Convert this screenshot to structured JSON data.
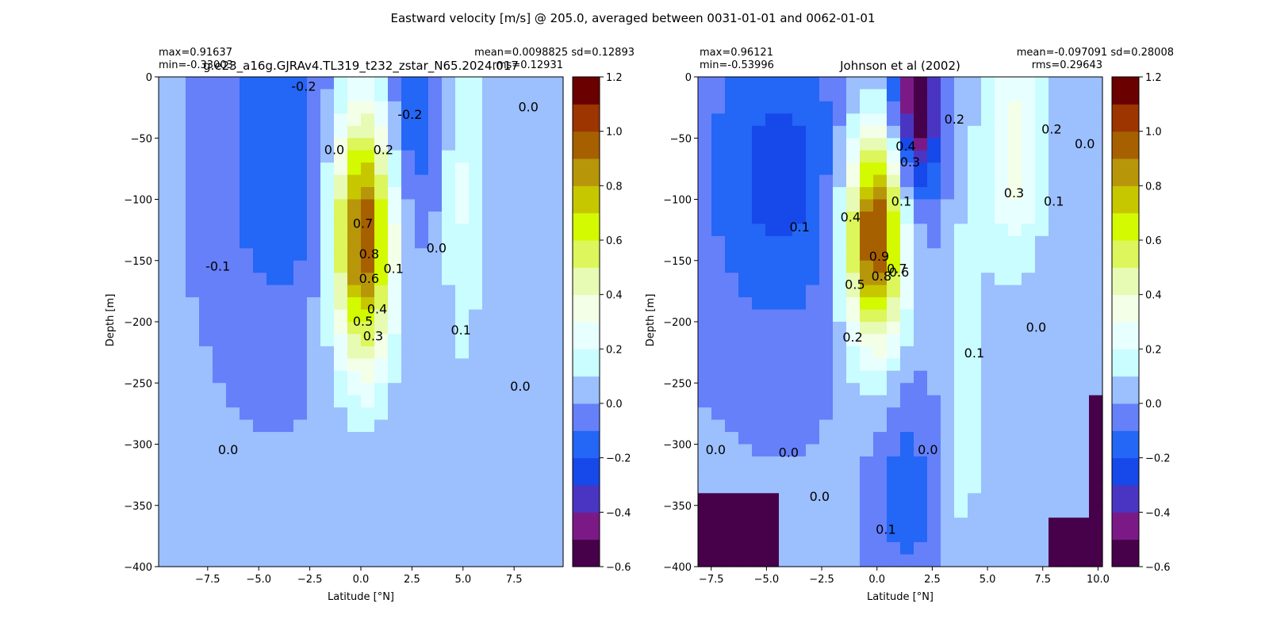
{
  "figure": {
    "title": "Eastward velocity [m/s] @ 205.0, averaged between 0031-01-01 and 0062-01-01"
  },
  "colors": {
    "levels": [
      -0.6,
      -0.5,
      -0.4,
      -0.3,
      -0.2,
      -0.1,
      0.0,
      0.1,
      0.2,
      0.3,
      0.4,
      0.5,
      0.6,
      0.7,
      0.8,
      0.9,
      1.0,
      1.1,
      1.2
    ],
    "fills": [
      "#47004a",
      "#7b1a86",
      "#4a35c2",
      "#1748ea",
      "#2466f5",
      "#6680fa",
      "#9cbffe",
      "#c9fdff",
      "#e8ffff",
      "#f4ffe8",
      "#e7fbb4",
      "#dcf65b",
      "#d3fa00",
      "#c7c700",
      "#b8960a",
      "#a76000",
      "#9c3500",
      "#6a0000"
    ]
  },
  "chart_data": [
    {
      "type": "heatmap",
      "title": "g.e23_a16g.GJRAv4.TL319_t232_zstar_N65.2024.017",
      "stats_left": [
        "max=0.91637",
        "min=-0.33003"
      ],
      "stats_right": [
        "mean=0.0098825 sd=0.12893",
        "rms=0.12931"
      ],
      "xlabel": "Latitude [°N]",
      "ylabel": "Depth [m]",
      "xlim": [
        -9.9,
        9.9
      ],
      "ylim": [
        -400,
        0
      ],
      "xticks": [
        -7.5,
        -5.0,
        -2.5,
        0.0,
        2.5,
        5.0,
        7.5
      ],
      "xticklabels": [
        "−7.5",
        "−5.0",
        "−2.5",
        "0.0",
        "2.5",
        "5.0",
        "7.5"
      ],
      "yticks": [
        0,
        -50,
        -100,
        -150,
        -200,
        -250,
        -300,
        -350,
        -400
      ],
      "yticklabels": [
        "0",
        "−50",
        "−100",
        "−150",
        "−200",
        "−250",
        "−300",
        "−350",
        "−400"
      ],
      "cbar_ticks": [
        -0.6,
        -0.4,
        -0.2,
        0.0,
        0.2,
        0.4,
        0.6,
        0.8,
        1.0,
        1.2
      ],
      "cbar_ticklabels": [
        "−0.6",
        "−0.4",
        "−0.2",
        "0.0",
        "0.2",
        "0.4",
        "0.6",
        "0.8",
        "1.0",
        "1.2"
      ],
      "features": [
        {
          "kind": "jet",
          "lat": 0.1,
          "depth": -130,
          "amp": 1.0,
          "slat": 1.05,
          "sdepth": 75
        },
        {
          "kind": "jet",
          "lat": 5.0,
          "depth": -90,
          "amp": 0.2,
          "slat": 0.7,
          "sdepth": 110
        },
        {
          "kind": "jet",
          "lat": -4.0,
          "depth": -70,
          "amp": -0.2,
          "slat": 2.0,
          "sdepth": 90
        },
        {
          "kind": "jet",
          "lat": 2.5,
          "depth": -40,
          "amp": -0.2,
          "slat": 0.9,
          "sdepth": 55
        }
      ],
      "contour_labels": [
        {
          "text": "-0.2",
          "lat": -2.8,
          "depth": -8
        },
        {
          "text": "-0.2",
          "lat": 2.4,
          "depth": -31
        },
        {
          "text": "0.0",
          "lat": 8.2,
          "depth": -25
        },
        {
          "text": "0.0",
          "lat": -1.3,
          "depth": -60
        },
        {
          "text": "0.2",
          "lat": 1.1,
          "depth": -60
        },
        {
          "text": "0.7",
          "lat": 0.1,
          "depth": -120
        },
        {
          "text": "0.8",
          "lat": 0.4,
          "depth": -145
        },
        {
          "text": "0.6",
          "lat": 0.4,
          "depth": -165
        },
        {
          "text": "0.1",
          "lat": 1.6,
          "depth": -157
        },
        {
          "text": "0.5",
          "lat": 0.1,
          "depth": -200
        },
        {
          "text": "0.3",
          "lat": 0.6,
          "depth": -212
        },
        {
          "text": "0.4",
          "lat": 0.8,
          "depth": -190
        },
        {
          "text": "0.0",
          "lat": 3.7,
          "depth": -140
        },
        {
          "text": "-0.1",
          "lat": -7.0,
          "depth": -155
        },
        {
          "text": "0.1",
          "lat": 4.9,
          "depth": -207
        },
        {
          "text": "0.0",
          "lat": 7.8,
          "depth": -253
        },
        {
          "text": "0.0",
          "lat": -6.5,
          "depth": -305
        }
      ]
    },
    {
      "type": "heatmap",
      "title": "Johnson et al (2002)",
      "stats_left": [
        "max=0.96121",
        "min=-0.53996"
      ],
      "stats_right": [
        "mean=-0.097091 sd=0.28008",
        "rms=0.29643"
      ],
      "xlabel": "Latitude [°N]",
      "ylabel": "Depth [m]",
      "xlim": [
        -8.1,
        10.2
      ],
      "ylim": [
        -400,
        0
      ],
      "xticks": [
        -7.5,
        -5.0,
        -2.5,
        0.0,
        2.5,
        5.0,
        7.5,
        10.0
      ],
      "xticklabels": [
        "−7.5",
        "−5.0",
        "−2.5",
        "0.0",
        "2.5",
        "5.0",
        "7.5",
        "10.0"
      ],
      "yticks": [
        0,
        -50,
        -100,
        -150,
        -200,
        -250,
        -300,
        -350,
        -400
      ],
      "yticklabels": [
        "0",
        "−50",
        "−100",
        "−150",
        "−200",
        "−250",
        "−300",
        "−350",
        "−400"
      ],
      "cbar_ticks": [
        -0.6,
        -0.4,
        -0.2,
        0.0,
        0.2,
        0.4,
        0.6,
        0.8,
        1.0,
        1.2
      ],
      "cbar_ticklabels": [
        "−0.6",
        "−0.4",
        "−0.2",
        "0.0",
        "0.2",
        "0.4",
        "0.6",
        "0.8",
        "1.0",
        "1.2"
      ],
      "features": [
        {
          "kind": "jet",
          "lat": -0.1,
          "depth": -130,
          "amp": 1.05,
          "slat": 0.95,
          "sdepth": 62
        },
        {
          "kind": "jet",
          "lat": 1.8,
          "depth": -20,
          "amp": -0.62,
          "slat": 0.75,
          "sdepth": 55
        },
        {
          "kind": "jet",
          "lat": -4.5,
          "depth": -80,
          "amp": -0.25,
          "slat": 2.3,
          "sdepth": 90
        },
        {
          "kind": "jet",
          "lat": 6.2,
          "depth": -60,
          "amp": 0.33,
          "slat": 1.0,
          "sdepth": 70
        },
        {
          "kind": "jet",
          "lat": 4.0,
          "depth": -250,
          "amp": 0.15,
          "slat": 0.6,
          "sdepth": 120
        },
        {
          "kind": "jet",
          "lat": 1.3,
          "depth": -340,
          "amp": -0.18,
          "slat": 0.9,
          "sdepth": 55
        },
        {
          "kind": "mask",
          "lat0": -8.1,
          "lat1": -4.7,
          "depth0": -340,
          "depth1": -400
        },
        {
          "kind": "mask",
          "lat0": 8.0,
          "lat1": 10.2,
          "depth0": -360,
          "depth1": -400
        },
        {
          "kind": "mask",
          "lat0": 9.4,
          "lat1": 10.2,
          "depth0": -260,
          "depth1": -400
        },
        {
          "kind": "mask",
          "lat0": 9.9,
          "lat1": 10.2,
          "depth0": 0,
          "depth1": -400
        }
      ],
      "contour_labels": [
        {
          "text": "0.4",
          "lat": 1.3,
          "depth": -57
        },
        {
          "text": "0.3",
          "lat": 1.5,
          "depth": -70
        },
        {
          "text": "0.2",
          "lat": 3.5,
          "depth": -35
        },
        {
          "text": "0.2",
          "lat": 7.9,
          "depth": -43
        },
        {
          "text": "0.0",
          "lat": 9.4,
          "depth": -55
        },
        {
          "text": "0.3",
          "lat": 6.2,
          "depth": -95
        },
        {
          "text": "0.1",
          "lat": 8.0,
          "depth": -102
        },
        {
          "text": "0.1",
          "lat": 1.1,
          "depth": -102
        },
        {
          "text": "0.1",
          "lat": -3.5,
          "depth": -123
        },
        {
          "text": "0.4",
          "lat": -1.2,
          "depth": -115
        },
        {
          "text": "0.9",
          "lat": 0.1,
          "depth": -147
        },
        {
          "text": "0.8",
          "lat": 0.2,
          "depth": -163
        },
        {
          "text": "0.7",
          "lat": 0.9,
          "depth": -157
        },
        {
          "text": "0.6",
          "lat": 1.0,
          "depth": -160
        },
        {
          "text": "0.5",
          "lat": -1.0,
          "depth": -170
        },
        {
          "text": "0.2",
          "lat": -1.1,
          "depth": -213
        },
        {
          "text": "0.1",
          "lat": 4.4,
          "depth": -226
        },
        {
          "text": "0.0",
          "lat": 7.2,
          "depth": -205
        },
        {
          "text": "0.0",
          "lat": -7.3,
          "depth": -305
        },
        {
          "text": "0.0",
          "lat": -4.0,
          "depth": -307
        },
        {
          "text": "0.0",
          "lat": 2.3,
          "depth": -305
        },
        {
          "text": "0.0",
          "lat": -2.6,
          "depth": -343
        },
        {
          "text": "0.1",
          "lat": 0.4,
          "depth": -370
        }
      ]
    }
  ]
}
